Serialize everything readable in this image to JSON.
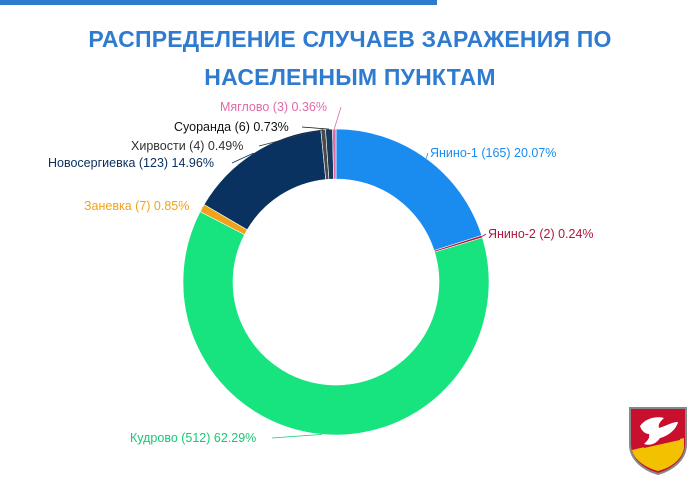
{
  "header": {
    "title_line1": "РАСПРЕДЕЛЕНИЕ СЛУЧАЕВ ЗАРАЖЕНИЯ ПО",
    "title_line2": "НАСЕЛЕННЫМ ПУНКТАМ"
  },
  "colors": {
    "title": "#2f7bd0",
    "accent_bar": "#2f7bd0"
  },
  "chart_data": {
    "type": "pie",
    "title": "РАСПРЕДЕЛЕНИЕ СЛУЧАЕВ ЗАРАЖЕНИЯ ПО НАСЕЛЕННЫМ ПУНКТАМ",
    "donut": true,
    "slices": [
      {
        "label": "Янино-1 (165) 20.07%",
        "name": "Янино-1",
        "value": 165,
        "percent": 20.07,
        "color": "#1a8cf0",
        "label_color": "#1a8cf0"
      },
      {
        "label": "Янино-2 (2) 0.24%",
        "name": "Янино-2",
        "value": 2,
        "percent": 0.24,
        "color": "#b0163a",
        "label_color": "#b0163a"
      },
      {
        "label": "Кудрово (512) 62.29%",
        "name": "Кудрово",
        "value": 512,
        "percent": 62.29,
        "color": "#17e37f",
        "label_color": "#17c975"
      },
      {
        "label": "Заневка (7) 0.85%",
        "name": "Заневка",
        "value": 7,
        "percent": 0.85,
        "color": "#f0a31a",
        "label_color": "#f0a31a"
      },
      {
        "label": "Новосергиевка (123) 14.96%",
        "name": "Новосергиевка",
        "value": 123,
        "percent": 14.96,
        "color": "#0a3260",
        "label_color": "#0a3260"
      },
      {
        "label": "Хирвости (4) 0.49%",
        "name": "Хирвости",
        "value": 4,
        "percent": 0.49,
        "color": "#4a4a4a",
        "label_color": "#333333"
      },
      {
        "label": "Суоранда (6) 0.73%",
        "name": "Суоранда",
        "value": 6,
        "percent": 0.73,
        "color": "#163a5a",
        "label_color": "#111111"
      },
      {
        "label": "Мяглово (3) 0.36%",
        "name": "Мяглово",
        "value": 3,
        "percent": 0.36,
        "color": "#e06aa8",
        "label_color": "#e06aa8"
      }
    ]
  },
  "emblem": {
    "icon": "coat-of-arms-icon",
    "colors": {
      "shield": "#c8102e",
      "bird": "#ffffff",
      "lower": "#f2c200",
      "border": "#888888"
    }
  }
}
